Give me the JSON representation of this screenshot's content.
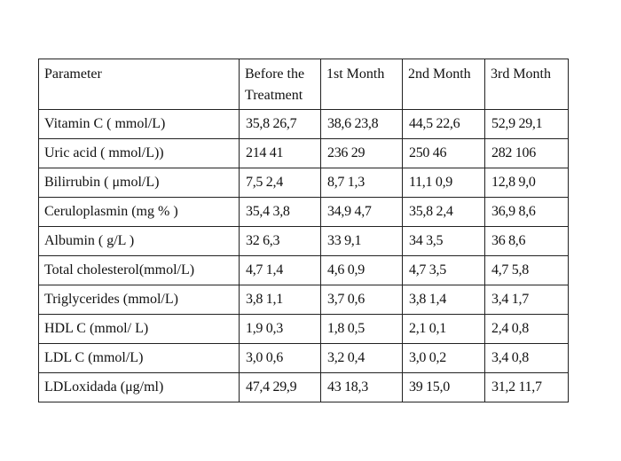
{
  "table": {
    "headers": [
      "Parameter",
      "Before the Treatment",
      "1st Month",
      "2nd Month",
      "3rd Month"
    ],
    "rows": [
      [
        "Vitamin C ( mmol/L)",
        "35,8 26,7",
        "38,6 23,8",
        "44,5 22,6",
        "52,9 29,1"
      ],
      [
        "Uric acid ( mmol/L))",
        "214 41",
        "236 29",
        "250 46",
        "282 106"
      ],
      [
        "Bilirrubin ( μmol/L)",
        "7,5 2,4",
        "8,7 1,3",
        "11,1 0,9",
        "12,8 9,0"
      ],
      [
        "Ceruloplasmin (mg % )",
        "35,4 3,8",
        "34,9 4,7",
        "35,8 2,4",
        "36,9 8,6"
      ],
      [
        "Albumin ( g/L )",
        "32 6,3",
        "33 9,1",
        "34 3,5",
        "36 8,6"
      ],
      [
        "Total cholesterol(mmol/L)",
        "4,7 1,4",
        "4,6 0,9",
        "4,7 3,5",
        "4,7 5,8"
      ],
      [
        "Triglycerides (mmol/L)",
        "3,8 1,1",
        "3,7 0,6",
        "3,8 1,4",
        "3,4 1,7"
      ],
      [
        "HDL C (mmol/ L)",
        "1,9 0,3",
        "1,8 0,5",
        "2,1 0,1",
        "2,4 0,8"
      ],
      [
        "LDL C (mmol/L)",
        "3,0 0,6",
        "3,2 0,4",
        "3,0 0,2",
        "3,4 0,8"
      ],
      [
        "LDLoxidada (μg/ml)",
        "47,4 29,9",
        "43 18,3",
        "39 15,0",
        "31,2 11,7"
      ]
    ]
  }
}
